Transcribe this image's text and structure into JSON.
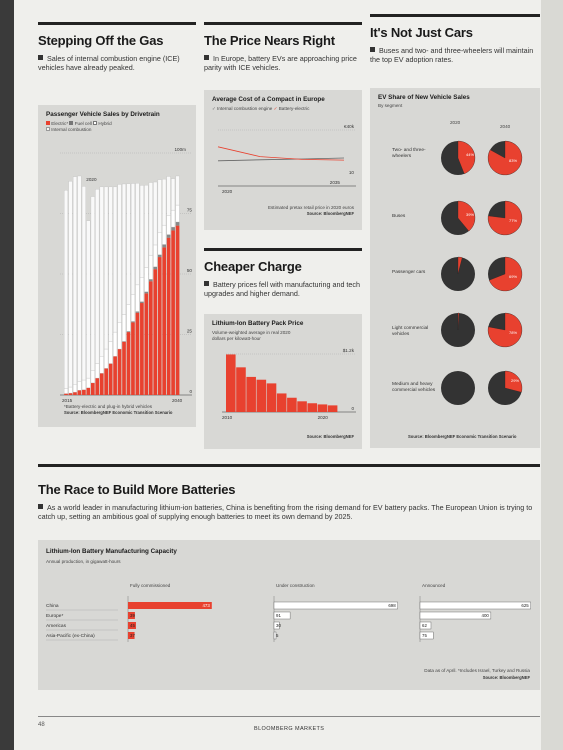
{
  "page": {
    "number": "48",
    "publication": "BLOOMBERG MARKETS"
  },
  "section1": {
    "title": "Stepping Off the Gas",
    "lede": "Sales of internal combustion engine (ICE) vehicles have already peaked.",
    "chart_title": "Passenger Vehicle Sales by Drivetrain",
    "legend": [
      "Electric*",
      "Fuel cell",
      "Hybrid",
      "Internal combustion"
    ],
    "y_unit_label": "100m",
    "yticks": [
      "75",
      "50",
      "25",
      "0"
    ],
    "xlabels": [
      "2015",
      "2040"
    ],
    "inline_year": "2020",
    "footnote": "*Battery-electric and plug-in hybrid vehicles",
    "source": "Source: BloombergNEF Economic Transition Scenario"
  },
  "section2": {
    "title": "The Price Nears Right",
    "lede": "In Europe, battery EVs are approaching price parity with ICE vehicles.",
    "chart_title": "Average Cost of a Compact in Europe",
    "legend": [
      "Internal combustion engine",
      "Battery-electric"
    ],
    "top_value": "€40k",
    "bottom_value": "10",
    "xlabels": [
      "2020",
      "2035"
    ],
    "footnote": "Estimated pretax retail price in 2020 euros",
    "source": "Source: BloombergNEF"
  },
  "section3": {
    "title": "Cheaper Charge",
    "lede": "Battery prices fell with manufacturing and tech upgrades and higher demand.",
    "chart_title": "Lithium-Ion Battery Pack Price",
    "subtitle": "Volume-weighted average in real 2020 dollars per kilowatt-hour",
    "top_value": "$1.2k",
    "zero": "0",
    "xlabels": [
      "2010",
      "2020"
    ],
    "source": "Source: BloombergNEF"
  },
  "section4": {
    "title": "It's Not Just Cars",
    "lede": "Buses and two- and three-wheelers will maintain the top EV adoption rates.",
    "chart_title": "EV Share of New Vehicle Sales",
    "subtitle": "By segment",
    "years": [
      "2020",
      "2040"
    ],
    "segments": [
      {
        "label": "Two- and three-wheelers",
        "v2020": "44%",
        "v2040": "83%"
      },
      {
        "label": "Buses",
        "v2020": "39%",
        "v2040": "77%"
      },
      {
        "label": "Passenger cars",
        "v2020": "",
        "v2040": "69%"
      },
      {
        "label": "Light commercial vehicles",
        "v2020": "",
        "v2040": "78%"
      },
      {
        "label": "Medium and heavy commercial vehicles",
        "v2020": "",
        "v2040": "29%"
      }
    ],
    "source": "Source: BloombergNEF Economic Transition Scenario"
  },
  "section5": {
    "title": "The Race to Build More Batteries",
    "lede": "As a world leader in manufacturing lithium-ion batteries, China is benefiting from the rising demand for EV battery packs. The European Union is trying to catch up, setting an ambitious goal of supplying enough batteries to meet its own demand by 2025.",
    "chart_title": "Lithium-Ion Battery Manufacturing Capacity",
    "subtitle": "Annual production, in gigawatt-hours",
    "groups": [
      "Fully commissioned",
      "Under construction",
      "Announced"
    ],
    "regions": [
      "China",
      "Europe*",
      "Americas",
      "Asia-Pacific (ex-China)"
    ],
    "footnote": "Data as of April. *Includes Israel, Turkey and Russia",
    "source": "Source: BloombergNEF"
  },
  "chart_data": [
    {
      "type": "bar",
      "title": "Passenger Vehicle Sales by Drivetrain",
      "ylabel": "",
      "ylim": [
        0,
        100
      ],
      "x": [
        2015,
        2016,
        2017,
        2018,
        2019,
        2020,
        2021,
        2022,
        2023,
        2024,
        2025,
        2026,
        2027,
        2028,
        2029,
        2030,
        2031,
        2032,
        2033,
        2034,
        2035,
        2036,
        2037,
        2038,
        2039,
        2040
      ],
      "series": [
        {
          "name": "Electric*",
          "values": [
            0.6,
            0.8,
            1.2,
            2,
            2.2,
            3,
            5,
            7,
            9,
            11,
            13,
            16,
            19,
            22,
            26,
            30,
            34,
            38,
            42,
            47,
            52,
            57,
            61,
            65,
            68,
            70
          ]
        },
        {
          "name": "Fuel cell",
          "values": [
            0,
            0,
            0,
            0,
            0,
            0,
            0,
            0,
            0,
            0,
            0,
            0,
            0,
            0.2,
            0.3,
            0.4,
            0.5,
            0.6,
            0.7,
            0.8,
            1,
            1,
            1.2,
            1.3,
            1.4,
            1.5
          ]
        },
        {
          "name": "Hybrid",
          "values": [
            2,
            2.5,
            3,
            3.5,
            4,
            4,
            5,
            6,
            7,
            8,
            9,
            10,
            11,
            11,
            11,
            11,
            11,
            10,
            10,
            10,
            9,
            9,
            8,
            8,
            7,
            7
          ]
        },
        {
          "name": "Internal combustion",
          "values": [
            82,
            85,
            86,
            85,
            80,
            65,
            72,
            72,
            70,
            67,
            64,
            60,
            57,
            54,
            50,
            46,
            42,
            38,
            34,
            30,
            26,
            22,
            19,
            16,
            13,
            12
          ]
        }
      ]
    },
    {
      "type": "line",
      "title": "Average Cost of a Compact in Europe",
      "x": [
        2020,
        2025,
        2030,
        2035
      ],
      "series": [
        {
          "name": "Internal combustion engine",
          "values": [
            18,
            18.7,
            19.3,
            20
          ]
        },
        {
          "name": "Battery-electric",
          "values": [
            28,
            21,
            19,
            18.5
          ]
        }
      ]
    },
    {
      "type": "bar",
      "title": "Lithium-Ion Battery Pack Price",
      "x": [
        2010,
        2011,
        2012,
        2013,
        2014,
        2015,
        2016,
        2017,
        2018,
        2019,
        2020
      ],
      "values": [
        1191,
        924,
        726,
        668,
        592,
        384,
        295,
        221,
        181,
        157,
        137
      ],
      "ylim": [
        0,
        1200
      ]
    },
    {
      "type": "pie",
      "title": "EV Share of New Vehicle Sales",
      "categories": [
        "Two- and three-wheelers",
        "Buses",
        "Passenger cars",
        "Light commercial vehicles",
        "Medium and heavy commercial vehicles"
      ],
      "series": [
        {
          "name": "2020",
          "values": [
            44,
            39,
            4,
            1,
            0
          ]
        },
        {
          "name": "2040",
          "values": [
            83,
            77,
            69,
            78,
            29
          ]
        }
      ]
    },
    {
      "type": "bar",
      "title": "Lithium-Ion Battery Manufacturing Capacity",
      "categories": [
        "China",
        "Europe*",
        "Americas",
        "Asia-Pacific (ex-China)"
      ],
      "series": [
        {
          "name": "Fully commissioned",
          "values": [
            473,
            39,
            45,
            37
          ]
        },
        {
          "name": "Under construction",
          "values": [
            698,
            91,
            30,
            5
          ]
        },
        {
          "name": "Announced",
          "values": [
            625,
            400,
            62,
            75
          ]
        }
      ]
    }
  ]
}
